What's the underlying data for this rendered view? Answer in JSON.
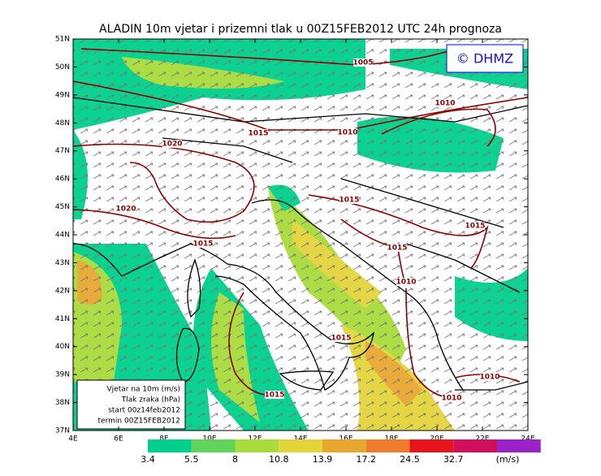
{
  "header": {
    "title": "ALADIN 10m vjetar i prizemni tlak u 00Z15FEB2012 UTC 24h prognoza",
    "logo": "© DHMZ"
  },
  "axes": {
    "lat_labels": [
      "51N",
      "50N",
      "49N",
      "48N",
      "47N",
      "46N",
      "45N",
      "44N",
      "43N",
      "42N",
      "41N",
      "40N",
      "39N",
      "38N",
      "37N"
    ],
    "lon_labels": [
      "4E",
      "6E",
      "8E",
      "10E",
      "12E",
      "14E",
      "16E",
      "18E",
      "20E",
      "22E",
      "24E"
    ]
  },
  "isobars": [
    {
      "label": "1005"
    },
    {
      "label": "1010"
    },
    {
      "label": "1010"
    },
    {
      "label": "1015"
    },
    {
      "label": "1020"
    },
    {
      "label": "1020"
    },
    {
      "label": "1015"
    },
    {
      "label": "1015"
    },
    {
      "label": "1015"
    },
    {
      "label": "1015"
    },
    {
      "label": "1010"
    },
    {
      "label": "1015"
    },
    {
      "label": "1015"
    },
    {
      "label": "1010"
    },
    {
      "label": "1010"
    }
  ],
  "legend_box": [
    "Vjetar na 10m (m/s)",
    "Tlak zraka (hPa)",
    "start 00z14feb2012",
    "termin 00Z15FEB2012"
  ],
  "colorbar": {
    "levels": [
      3.4,
      5.5,
      8,
      10.8,
      13.9,
      17.2,
      24.5,
      32.7
    ],
    "colors": [
      "#00d08c",
      "#5fd35a",
      "#a8dc3a",
      "#e3d43a",
      "#e8a830",
      "#ee7c2a",
      "#e8141c",
      "#d0105a"
    ],
    "extra_color": "#9a22c8",
    "unit": "(m/s)"
  }
}
